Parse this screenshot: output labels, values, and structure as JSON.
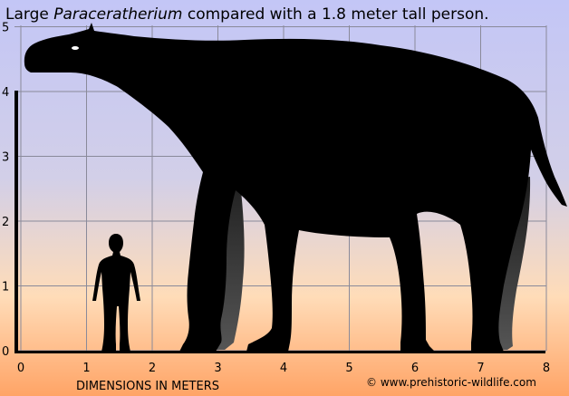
{
  "title": {
    "prefix": "Large ",
    "italic": "Paracera­therium",
    "suffix": " compared with a 1.8 meter tall person."
  },
  "chart_data": {
    "type": "size-comparison",
    "x_ticks": [
      "0",
      "1",
      "2",
      "3",
      "4",
      "5",
      "6",
      "7",
      "8"
    ],
    "y_ticks": [
      "0",
      "1",
      "2",
      "3",
      "4",
      "5"
    ],
    "xlim": [
      0,
      8
    ],
    "ylim": [
      0,
      5
    ],
    "xlabel": "DIMENSIONS IN METERS",
    "grid": true,
    "human_height": 1.8
  },
  "credit": "© www.prehistoric-wildlife.com",
  "colors": {
    "sky_top": "#c6c9f4",
    "sky_mid": "#d8d0e2",
    "sky_low": "#ffd7a8",
    "ground": "#ffa76a",
    "silhouette": "#000000",
    "far_legs": "#3a3a3a"
  }
}
